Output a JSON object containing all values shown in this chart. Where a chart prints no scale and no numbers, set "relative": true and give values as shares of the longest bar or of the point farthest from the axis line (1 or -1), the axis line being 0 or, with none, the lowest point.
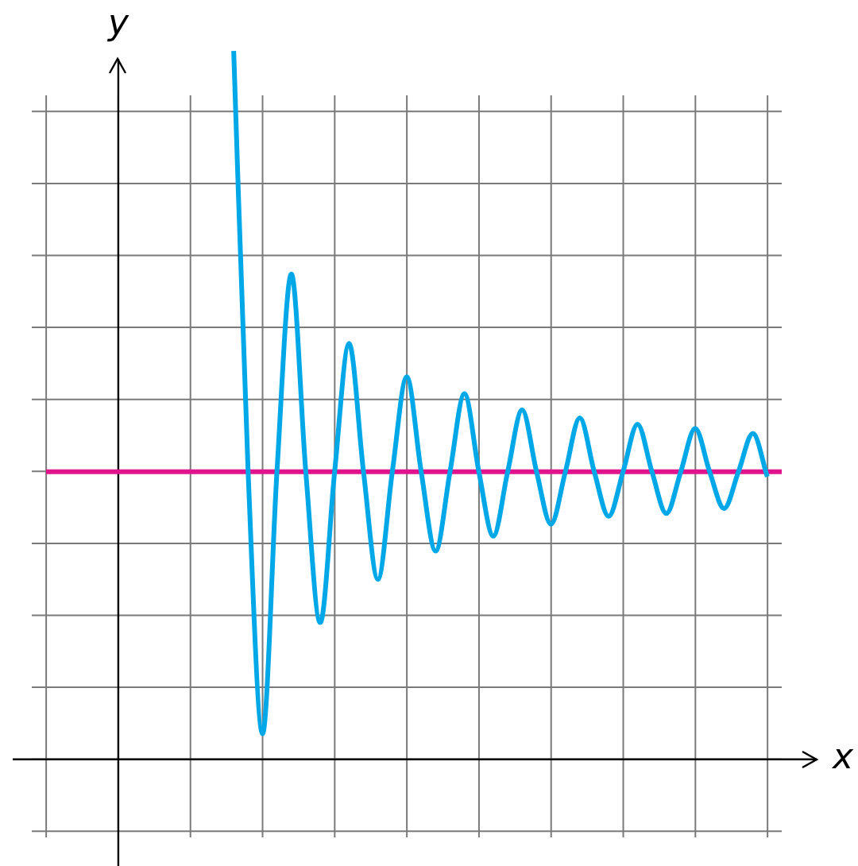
{
  "chart_data": {
    "type": "line",
    "xlabel": "x",
    "ylabel": "y",
    "relative": true,
    "grid": true,
    "legend": false,
    "marker": "none",
    "line_style": "solid",
    "tick_labels": false,
    "categories": [
      null,
      null,
      null,
      null,
      null,
      null,
      null,
      null,
      null,
      null,
      null,
      null,
      null,
      null,
      null,
      null,
      null,
      null,
      null,
      null,
      null,
      null,
      null,
      null,
      null,
      null,
      null,
      null,
      null,
      null,
      null,
      null,
      null,
      null,
      null,
      null,
      null,
      null,
      null,
      null,
      null,
      null,
      null,
      null,
      null,
      null,
      null,
      null,
      null,
      null,
      null,
      null,
      null
    ],
    "series": [
      {
        "color": "#00a8e8",
        "values": [
          null,
          null,
          null,
          null,
          null,
          null,
          null,
          null,
          null,
          null,
          null,
          null,
          null,
          null,
          1,
          0.406,
          0.036,
          0.406,
          0.685,
          0.406,
          0.193,
          0.406,
          0.587,
          0.406,
          0.254,
          0.406,
          0.54,
          0.406,
          0.294,
          0.406,
          0.516,
          0.406,
          0.315,
          0.406,
          0.493,
          0.406,
          0.332,
          0.406,
          0.482,
          0.406,
          0.343,
          0.406,
          0.473,
          0.406,
          0.347,
          0.406,
          0.467,
          0.406,
          0.354,
          0.406,
          0.46,
          0.399,
          null
        ]
      }
    ],
    "ref_lines": [
      {
        "axis": "y",
        "value": 0.406,
        "color": "#e0148c"
      }
    ]
  }
}
